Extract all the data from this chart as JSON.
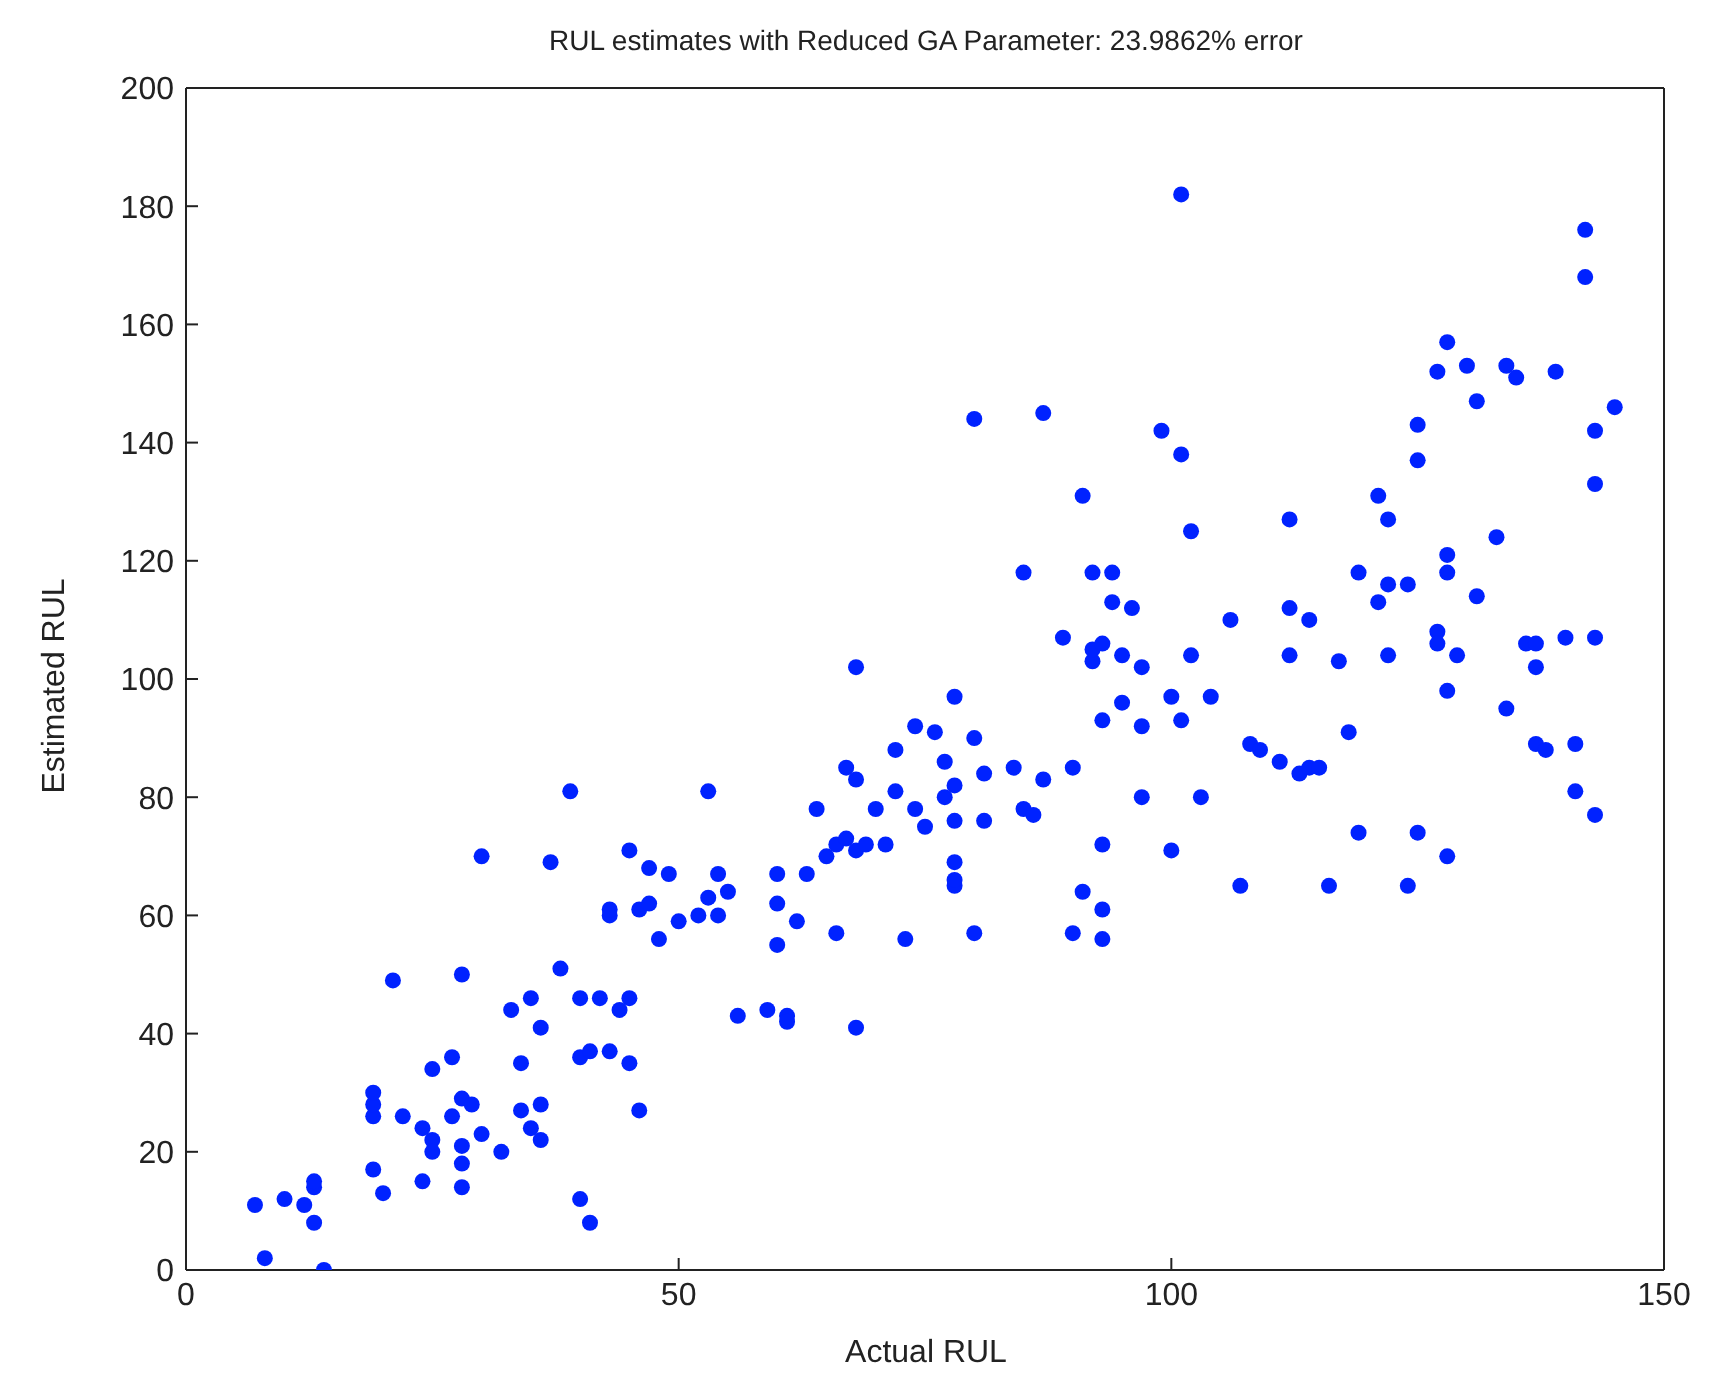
{
  "chart_data": {
    "type": "scatter",
    "title": "RUL estimates with Reduced GA Parameter: 23.9862% error",
    "xlabel": "Actual RUL",
    "ylabel": "Estimated RUL",
    "x": [
      7,
      8,
      10,
      12,
      13,
      13,
      13,
      14,
      19,
      19,
      19,
      19,
      20,
      21,
      22,
      24,
      24,
      25,
      25,
      25,
      27,
      27,
      28,
      28,
      28,
      28,
      28,
      29,
      30,
      30,
      32,
      33,
      34,
      34,
      35,
      35,
      36,
      36,
      36,
      37,
      38,
      39,
      40,
      40,
      40,
      41,
      41,
      42,
      43,
      43,
      43,
      44,
      45,
      45,
      45,
      46,
      46,
      47,
      47,
      48,
      49,
      50,
      52,
      53,
      53,
      54,
      54,
      55,
      56,
      59,
      60,
      60,
      60,
      61,
      61,
      62,
      63,
      64,
      65,
      66,
      66,
      67,
      67,
      68,
      68,
      68,
      68,
      69,
      70,
      71,
      72,
      72,
      73,
      74,
      74,
      75,
      76,
      77,
      77,
      78,
      78,
      78,
      78,
      78,
      78,
      80,
      80,
      80,
      81,
      81,
      84,
      85,
      85,
      86,
      87,
      87,
      89,
      90,
      90,
      91,
      91,
      92,
      92,
      92,
      93,
      93,
      93,
      93,
      93,
      94,
      94,
      95,
      95,
      96,
      97,
      97,
      97,
      99,
      100,
      100,
      101,
      101,
      101,
      102,
      102,
      103,
      104,
      106,
      107,
      108,
      109,
      111,
      112,
      112,
      112,
      113,
      114,
      114,
      115,
      116,
      117,
      118,
      119,
      119,
      121,
      121,
      122,
      122,
      122,
      124,
      124,
      125,
      125,
      125,
      127,
      127,
      127,
      128,
      128,
      128,
      128,
      128,
      129,
      130,
      131,
      131,
      133,
      134,
      134,
      135,
      136,
      137,
      137,
      137,
      138,
      139,
      140,
      141,
      141,
      142,
      142,
      143,
      143,
      143,
      143,
      145
    ],
    "series": [
      {
        "color": "#0022ff",
        "values": [
          11,
          2,
          12,
          11,
          8,
          14,
          15,
          0,
          26,
          28,
          30,
          17,
          13,
          49,
          26,
          15,
          24,
          34,
          22,
          20,
          26,
          36,
          50,
          14,
          18,
          21,
          29,
          28,
          70,
          23,
          20,
          44,
          27,
          35,
          24,
          46,
          22,
          28,
          41,
          69,
          51,
          81,
          36,
          46,
          12,
          8,
          37,
          46,
          37,
          60,
          61,
          44,
          46,
          71,
          35,
          61,
          27,
          62,
          68,
          56,
          67,
          59,
          60,
          81,
          63,
          60,
          67,
          64,
          43,
          44,
          55,
          62,
          67,
          43,
          42,
          59,
          67,
          78,
          70,
          72,
          57,
          85,
          73,
          71,
          83,
          41,
          102,
          72,
          78,
          72,
          81,
          88,
          56,
          78,
          92,
          75,
          91,
          80,
          86,
          65,
          66,
          69,
          97,
          76,
          82,
          90,
          57,
          144,
          84,
          76,
          85,
          118,
          78,
          77,
          145,
          83,
          107,
          57,
          85,
          131,
          64,
          103,
          105,
          118,
          93,
          72,
          61,
          56,
          106,
          118,
          113,
          96,
          104,
          112,
          92,
          102,
          80,
          142,
          71,
          97,
          93,
          138,
          182,
          104,
          125,
          80,
          97,
          110,
          65,
          89,
          88,
          86,
          127,
          112,
          104,
          84,
          110,
          85,
          85,
          65,
          103,
          91,
          74,
          118,
          113,
          131,
          127,
          104,
          116,
          65,
          116,
          143,
          137,
          74,
          152,
          108,
          106,
          157,
          118,
          121,
          98,
          70,
          104,
          153,
          147,
          114,
          124,
          153,
          95,
          151,
          106,
          106,
          102,
          89,
          88,
          152,
          107,
          89,
          81,
          176,
          168,
          77,
          107,
          133,
          142,
          146
        ]
      }
    ],
    "xlim": [
      0,
      150
    ],
    "xticks": [
      0,
      50,
      100,
      150
    ],
    "ylim": [
      0,
      200
    ],
    "yticks": [
      0,
      20,
      40,
      60,
      80,
      100,
      120,
      140,
      160,
      180,
      200
    ],
    "marker": "circle"
  }
}
